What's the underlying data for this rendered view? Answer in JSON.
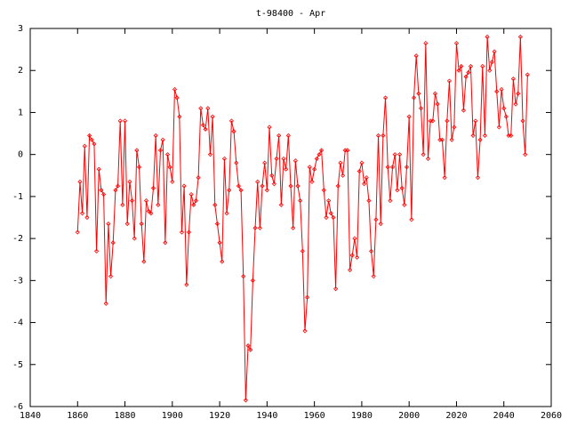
{
  "chart_data": {
    "type": "line",
    "title": "t-98400 - Apr",
    "x": [
      1860,
      1861,
      1862,
      1863,
      1864,
      1865,
      1866,
      1867,
      1868,
      1869,
      1870,
      1871,
      1872,
      1873,
      1874,
      1875,
      1876,
      1877,
      1878,
      1879,
      1880,
      1881,
      1882,
      1883,
      1884,
      1885,
      1886,
      1887,
      1888,
      1889,
      1890,
      1891,
      1892,
      1893,
      1894,
      1895,
      1896,
      1897,
      1898,
      1899,
      1900,
      1901,
      1902,
      1903,
      1904,
      1905,
      1906,
      1907,
      1908,
      1909,
      1910,
      1911,
      1912,
      1913,
      1914,
      1915,
      1916,
      1917,
      1918,
      1919,
      1920,
      1921,
      1922,
      1923,
      1924,
      1925,
      1926,
      1927,
      1928,
      1929,
      1930,
      1931,
      1932,
      1933,
      1934,
      1935,
      1936,
      1937,
      1938,
      1939,
      1940,
      1941,
      1942,
      1943,
      1944,
      1945,
      1946,
      1947,
      1948,
      1949,
      1950,
      1951,
      1952,
      1953,
      1954,
      1955,
      1956,
      1957,
      1958,
      1959,
      1960,
      1961,
      1962,
      1963,
      1964,
      1965,
      1966,
      1967,
      1968,
      1969,
      1970,
      1971,
      1972,
      1973,
      1974,
      1975,
      1976,
      1977,
      1978,
      1979,
      1980,
      1981,
      1982,
      1983,
      1984,
      1985,
      1986,
      1987,
      1988,
      1989,
      1990,
      1991,
      1992,
      1993,
      1994,
      1995,
      1996,
      1997,
      1998,
      1999,
      2000,
      2001,
      2002,
      2003,
      2004,
      2005,
      2006,
      2007,
      2008,
      2009,
      2010,
      2011,
      2012,
      2013,
      2014,
      2015,
      2016,
      2017,
      2018,
      2019,
      2020,
      2021,
      2022,
      2023,
      2024,
      2025,
      2026,
      2027,
      2028,
      2029,
      2030,
      2031,
      2032,
      2033,
      2034,
      2035,
      2036,
      2037,
      2038,
      2039,
      2040,
      2041,
      2042,
      2043,
      2044,
      2045,
      2046,
      2047,
      2048,
      2049,
      2050
    ],
    "series": [
      {
        "color": "#ff0000",
        "values": [
          -1.85,
          -0.65,
          -1.4,
          0.2,
          -1.5,
          0.45,
          0.35,
          0.25,
          -2.3,
          -0.35,
          -0.85,
          -0.95,
          -3.55,
          -1.65,
          -2.9,
          -2.1,
          -0.85,
          -0.75,
          0.8,
          -1.2,
          0.8,
          -1.65,
          -0.65,
          -1.1,
          -2.0,
          0.1,
          -0.3,
          -1.65,
          -2.55,
          -1.1,
          -1.35,
          -1.4,
          -0.8,
          0.45,
          -1.2,
          0.1,
          0.35,
          -2.1,
          0.0,
          -0.3,
          -0.65,
          1.55,
          1.35,
          0.9,
          -1.85,
          -0.75,
          -3.1,
          -1.85,
          -0.95,
          -1.2,
          -1.1,
          -0.55,
          1.1,
          0.7,
          0.6,
          1.1,
          0.0,
          0.9,
          -1.2,
          -1.65,
          -2.1,
          -2.55,
          -0.1,
          -1.4,
          -0.85,
          0.8,
          0.55,
          -0.2,
          -0.75,
          -0.85,
          -2.9,
          -5.85,
          -4.55,
          -4.65,
          -3.0,
          -1.75,
          -0.65,
          -1.75,
          -0.75,
          -0.2,
          -0.85,
          0.65,
          -0.5,
          -0.7,
          -0.1,
          0.45,
          -1.2,
          -0.1,
          -0.35,
          0.45,
          -0.75,
          -1.75,
          -0.15,
          -0.75,
          -1.1,
          -2.3,
          -4.2,
          -3.4,
          -0.3,
          -0.65,
          -0.35,
          -0.1,
          0.0,
          0.1,
          -0.85,
          -1.5,
          -1.1,
          -1.4,
          -1.5,
          -3.2,
          -0.75,
          -0.2,
          -0.5,
          0.1,
          0.1,
          -2.75,
          -2.4,
          -2.0,
          -2.45,
          -0.4,
          -0.2,
          -0.7,
          -0.55,
          -1.1,
          -2.3,
          -2.9,
          -1.55,
          0.45,
          -1.65,
          0.45,
          1.35,
          -0.3,
          -1.1,
          -0.3,
          0.0,
          -0.85,
          0.0,
          -0.8,
          -1.2,
          -0.3,
          0.9,
          -1.55,
          1.35,
          2.35,
          1.45,
          1.1,
          0.0,
          2.65,
          -0.1,
          0.8,
          0.8,
          1.45,
          1.2,
          0.35,
          0.35,
          -0.55,
          0.8,
          1.75,
          0.35,
          0.65,
          2.65,
          2.0,
          2.1,
          1.05,
          1.85,
          1.95,
          2.1,
          0.45,
          0.8,
          -0.55,
          0.35,
          2.1,
          0.45,
          2.8,
          2.0,
          2.2,
          2.45,
          1.5,
          0.65,
          1.55,
          1.1,
          0.9,
          0.45,
          0.45,
          1.8,
          1.2,
          1.45,
          2.8,
          0.8,
          0.0,
          1.9
        ]
      }
    ],
    "xlim": [
      1840,
      2060
    ],
    "xticks": [
      1840,
      1860,
      1880,
      1900,
      1920,
      1940,
      1960,
      1980,
      2000,
      2020,
      2040,
      2060
    ],
    "ylim": [
      -6,
      3
    ],
    "yticks": [
      -6,
      -5,
      -4,
      -3,
      -2,
      -1,
      0,
      1,
      2,
      3
    ]
  }
}
